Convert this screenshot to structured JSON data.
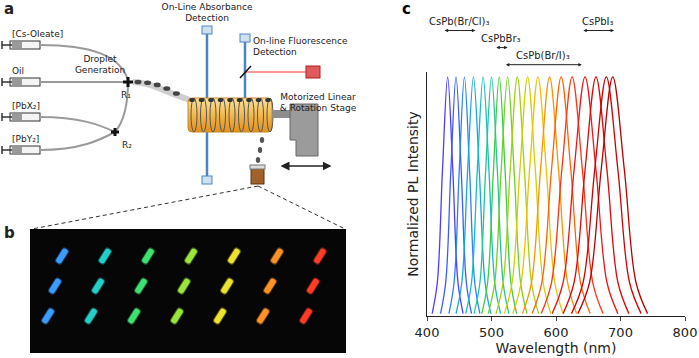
{
  "panel_labels": [
    "a",
    "b",
    "c"
  ],
  "schematic": {
    "inputs": [
      "[Cs-Oleate]",
      "Oil",
      "[PbX₂]",
      "[PbY₂]"
    ],
    "junctions": [
      "R₁",
      "R₂"
    ],
    "droplet_generation": [
      "Droplet",
      "Generation"
    ],
    "absorbance": [
      "On-Line Absorbance",
      "Detection"
    ],
    "fluorescence": [
      "On-line Fluorescence",
      "Detection"
    ],
    "stage": [
      "Motorized Linear",
      "& Rotation Stage"
    ]
  },
  "photo": {
    "droplet_colors": [
      "#3a9cff",
      "#22d0c8",
      "#3fe070",
      "#9be43c",
      "#ece230",
      "#ff9224",
      "#ff3c24"
    ],
    "droplets_per_column": 3
  },
  "chart_data": {
    "type": "line",
    "x_label": "Wavelength (nm)",
    "y_label": "Normalized PL Intensity",
    "xlim": [
      400,
      800
    ],
    "xticks": [
      400,
      500,
      600,
      700,
      800
    ],
    "ylim": [
      0,
      1.02
    ],
    "yticks": [],
    "tick_labels": "x",
    "grid": false,
    "annotations": [
      {
        "text": "CsPb(Br/Cl)₃",
        "x": [
          425,
          475
        ]
      },
      {
        "text": "CsPbBr₃",
        "x": [
          505,
          525
        ]
      },
      {
        "text": "CsPb(Br/I)₃",
        "x": [
          520,
          640
        ]
      },
      {
        "text": "CsPbI₃",
        "x": [
          640,
          690
        ]
      }
    ],
    "series": [
      {
        "color": "#4b3cff",
        "x": [
          408,
          416,
          424,
          432,
          440,
          448,
          456
        ],
        "values": [
          0.01,
          0.14,
          0.61,
          1,
          0.61,
          0.14,
          0.01
        ]
      },
      {
        "color": "#3a5cff",
        "x": [
          421,
          429,
          437,
          445,
          453,
          461,
          469
        ],
        "values": [
          0.01,
          0.14,
          0.61,
          1,
          0.61,
          0.14,
          0.01
        ]
      },
      {
        "color": "#2a80ff",
        "x": [
          434,
          442,
          450,
          458,
          466,
          474,
          482
        ],
        "values": [
          0.01,
          0.14,
          0.61,
          1,
          0.61,
          0.14,
          0.01
        ]
      },
      {
        "color": "#14a6e4",
        "x": [
          445,
          454,
          463,
          472,
          481,
          490,
          499
        ],
        "values": [
          0.01,
          0.14,
          0.61,
          1,
          0.61,
          0.14,
          0.01
        ]
      },
      {
        "color": "#10bfc0",
        "x": [
          460,
          469,
          478,
          487,
          496,
          505,
          514
        ],
        "values": [
          0.01,
          0.14,
          0.61,
          1,
          0.61,
          0.14,
          0.01
        ]
      },
      {
        "color": "#20c890",
        "x": [
          473,
          482,
          491,
          500,
          509,
          518,
          527
        ],
        "values": [
          0.01,
          0.14,
          0.61,
          1,
          0.61,
          0.14,
          0.01
        ]
      },
      {
        "color": "#3ccc44",
        "x": [
          485,
          494,
          503,
          512,
          521,
          530,
          539
        ],
        "values": [
          0.01,
          0.14,
          0.61,
          1,
          0.61,
          0.14,
          0.01
        ]
      },
      {
        "color": "#70d020",
        "x": [
          495,
          505,
          515,
          525,
          535,
          545,
          555
        ],
        "values": [
          0.01,
          0.14,
          0.61,
          1,
          0.61,
          0.14,
          0.01
        ]
      },
      {
        "color": "#a2d012",
        "x": [
          507,
          518,
          529,
          540,
          551,
          562,
          573
        ],
        "values": [
          0.01,
          0.14,
          0.61,
          1,
          0.61,
          0.14,
          0.01
        ]
      },
      {
        "color": "#d2d000",
        "x": [
          520,
          532,
          544,
          556,
          568,
          580,
          592
        ],
        "values": [
          0.01,
          0.14,
          0.61,
          1,
          0.61,
          0.14,
          0.01
        ]
      },
      {
        "color": "#f2c000",
        "x": [
          533,
          546,
          559,
          572,
          585,
          598,
          611
        ],
        "values": [
          0.01,
          0.14,
          0.61,
          1,
          0.61,
          0.14,
          0.01
        ]
      },
      {
        "color": "#ff9200",
        "x": [
          548,
          562,
          576,
          590,
          604,
          618,
          632
        ],
        "values": [
          0.01,
          0.14,
          0.61,
          1,
          0.61,
          0.14,
          0.01
        ]
      },
      {
        "color": "#ff6200",
        "x": [
          563,
          578,
          593,
          608,
          623,
          638,
          653
        ],
        "values": [
          0.01,
          0.14,
          0.61,
          1,
          0.61,
          0.14,
          0.01
        ]
      },
      {
        "color": "#ff3410",
        "x": [
          577,
          593,
          609,
          625,
          641,
          657,
          673
        ],
        "values": [
          0.01,
          0.14,
          0.61,
          1,
          0.61,
          0.14,
          0.01
        ]
      },
      {
        "color": "#f01414",
        "x": [
          594,
          611,
          628,
          645,
          662,
          679,
          696
        ],
        "values": [
          0.01,
          0.14,
          0.61,
          1,
          0.61,
          0.14,
          0.01
        ]
      },
      {
        "color": "#e00606",
        "x": [
          611,
          628,
          645,
          662,
          679,
          696,
          713
        ],
        "values": [
          0.01,
          0.14,
          0.61,
          1,
          0.61,
          0.14,
          0.01
        ]
      },
      {
        "color": "#d00000",
        "x": [
          624,
          642,
          660,
          678,
          696,
          714,
          732
        ],
        "values": [
          0.01,
          0.14,
          0.61,
          1,
          0.61,
          0.14,
          0.01
        ]
      },
      {
        "color": "#bc0000",
        "x": [
          634,
          652,
          670,
          688,
          706,
          724,
          742
        ],
        "values": [
          0.01,
          0.14,
          0.61,
          1,
          0.61,
          0.14,
          0.01
        ]
      }
    ]
  }
}
